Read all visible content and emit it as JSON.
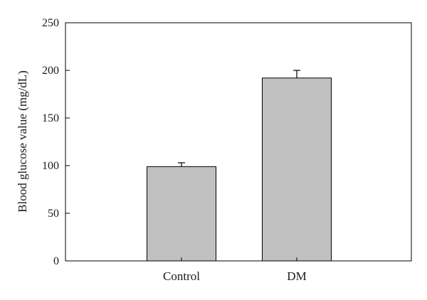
{
  "chart_data": {
    "type": "bar",
    "title": "",
    "xlabel": "",
    "ylabel": "Blood glucose value (mg/dL)",
    "categories": [
      "Control",
      "DM"
    ],
    "values": [
      99,
      192
    ],
    "errors": [
      4,
      8
    ],
    "ylim": [
      0,
      250
    ],
    "yticks": [
      0,
      50,
      100,
      150,
      200,
      250
    ],
    "grid": false,
    "legend": "none",
    "bar_color": "#c0c0c0",
    "bar_edge_color": "#000000"
  }
}
